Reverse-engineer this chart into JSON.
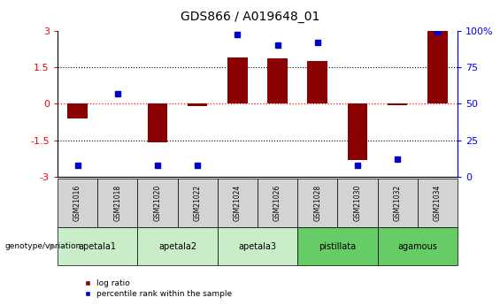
{
  "title": "GDS866 / A019648_01",
  "samples": [
    "GSM21016",
    "GSM21018",
    "GSM21020",
    "GSM21022",
    "GSM21024",
    "GSM21026",
    "GSM21028",
    "GSM21030",
    "GSM21032",
    "GSM21034"
  ],
  "log_ratio": [
    -0.6,
    0.0,
    -1.6,
    -0.1,
    1.9,
    1.85,
    1.75,
    -2.3,
    -0.05,
    3.0
  ],
  "percentile_rank": [
    8,
    57,
    8,
    8,
    97,
    90,
    92,
    8,
    12,
    99
  ],
  "groups": [
    {
      "label": "apetala1",
      "samples": [
        0,
        1
      ],
      "color": "#c8edc8"
    },
    {
      "label": "apetala2",
      "samples": [
        2,
        3
      ],
      "color": "#c8edc8"
    },
    {
      "label": "apetala3",
      "samples": [
        4,
        5
      ],
      "color": "#c8edc8"
    },
    {
      "label": "pistillata",
      "samples": [
        6,
        7
      ],
      "color": "#66cc66"
    },
    {
      "label": "agamous",
      "samples": [
        8,
        9
      ],
      "color": "#66cc66"
    }
  ],
  "bar_color": "#8B0000",
  "dot_color": "#0000CD",
  "ylim_left": [
    -3,
    3
  ],
  "ylim_right": [
    0,
    100
  ],
  "yticks_left": [
    -3,
    -1.5,
    0,
    1.5,
    3
  ],
  "yticks_right": [
    0,
    25,
    50,
    75,
    100
  ],
  "legend_labels": [
    "log ratio",
    "percentile rank within the sample"
  ],
  "sample_box_color": "#d3d3d3",
  "bar_width": 0.5
}
